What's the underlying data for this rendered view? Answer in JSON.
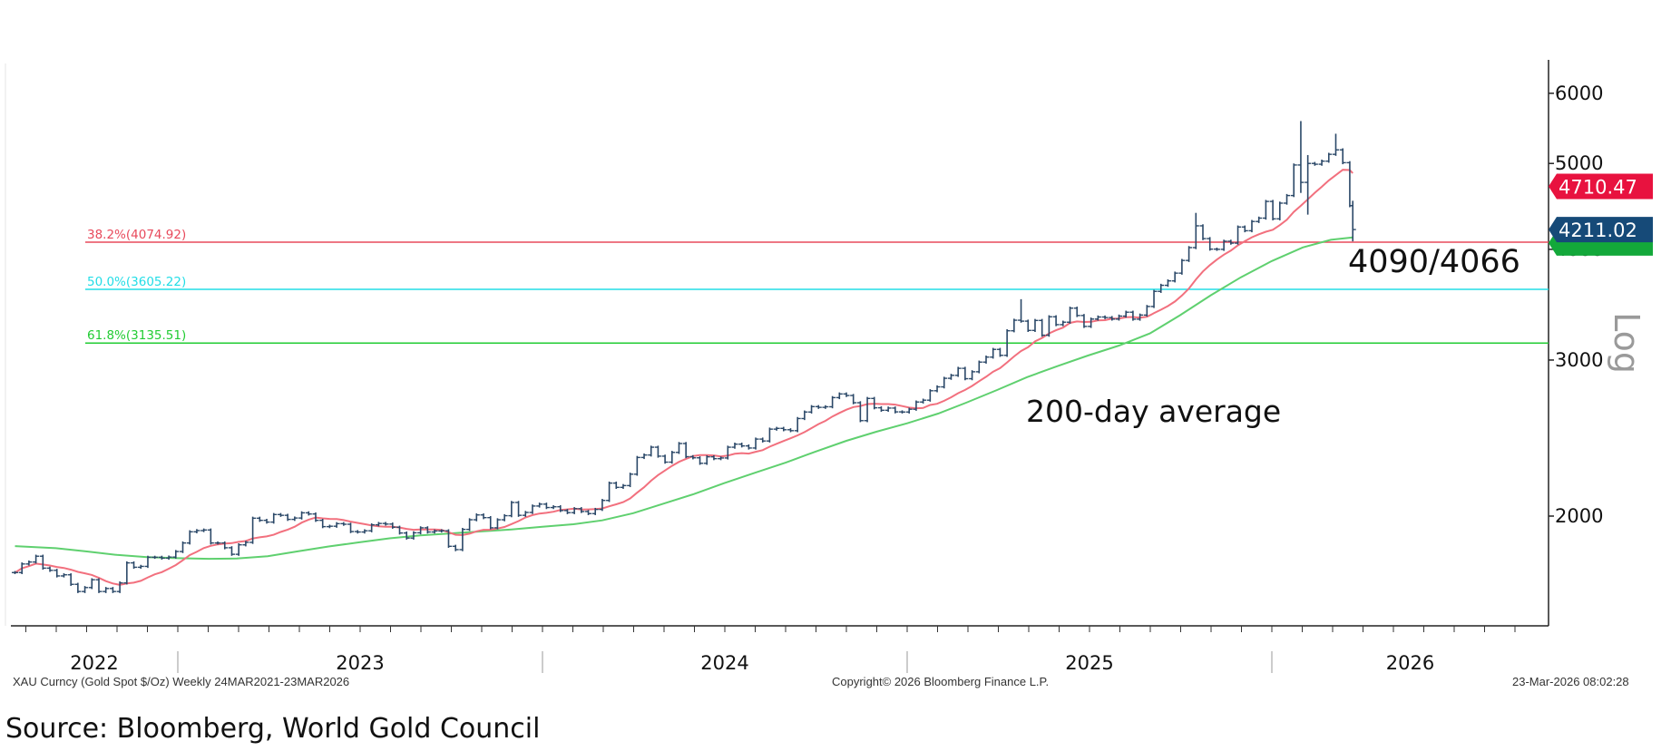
{
  "chart_data": {
    "type": "ohlc-bar",
    "frequency": "Weekly",
    "yscale": "log",
    "ylim": [
      1550,
      6400
    ],
    "yticks": [
      2000,
      3000,
      4000,
      5000,
      6000
    ],
    "axis_scale_label": "Log",
    "xticks": [
      "2022",
      "2023",
      "2024",
      "2025",
      "2026"
    ],
    "grid": false,
    "colors": {
      "bars": "#2b4868",
      "ma_red": "#f2707e",
      "ma_green": "#5fd06f",
      "fib_382": "#e84a5c",
      "fib_500": "#22dde6",
      "fib_618": "#22cc33",
      "tag_red": "#e8123f",
      "tag_blue": "#164a78",
      "tag_green": "#13a83a"
    },
    "closes": [
      [
        "2022-07-22",
        1727
      ],
      [
        "2022-07-29",
        1766
      ],
      [
        "2022-08-05",
        1775
      ],
      [
        "2022-08-12",
        1802
      ],
      [
        "2022-08-19",
        1747
      ],
      [
        "2022-08-26",
        1737
      ],
      [
        "2022-09-02",
        1712
      ],
      [
        "2022-09-09",
        1717
      ],
      [
        "2022-09-16",
        1675
      ],
      [
        "2022-09-23",
        1644
      ],
      [
        "2022-09-30",
        1661
      ],
      [
        "2022-10-07",
        1695
      ],
      [
        "2022-10-14",
        1644
      ],
      [
        "2022-10-21",
        1657
      ],
      [
        "2022-10-28",
        1644
      ],
      [
        "2022-11-04",
        1681
      ],
      [
        "2022-11-11",
        1771
      ],
      [
        "2022-11-18",
        1751
      ],
      [
        "2022-11-25",
        1755
      ],
      [
        "2022-12-02",
        1797
      ],
      [
        "2022-12-09",
        1797
      ],
      [
        "2022-12-16",
        1793
      ],
      [
        "2022-12-23",
        1798
      ],
      [
        "2022-12-30",
        1824
      ],
      [
        "2023-01-06",
        1865
      ],
      [
        "2023-01-13",
        1920
      ],
      [
        "2023-01-20",
        1926
      ],
      [
        "2023-01-27",
        1929
      ],
      [
        "2023-02-03",
        1865
      ],
      [
        "2023-02-10",
        1865
      ],
      [
        "2023-02-17",
        1842
      ],
      [
        "2023-02-24",
        1811
      ],
      [
        "2023-03-03",
        1856
      ],
      [
        "2023-03-10",
        1868
      ],
      [
        "2023-03-17",
        1989
      ],
      [
        "2023-03-24",
        1978
      ],
      [
        "2023-03-31",
        1969
      ],
      [
        "2023-04-07",
        2008
      ],
      [
        "2023-04-14",
        2004
      ],
      [
        "2023-04-21",
        1983
      ],
      [
        "2023-04-28",
        1990
      ],
      [
        "2023-05-05",
        2017
      ],
      [
        "2023-05-12",
        2011
      ],
      [
        "2023-05-19",
        1978
      ],
      [
        "2023-05-26",
        1946
      ],
      [
        "2023-06-02",
        1948
      ],
      [
        "2023-06-09",
        1961
      ],
      [
        "2023-06-16",
        1958
      ],
      [
        "2023-06-23",
        1921
      ],
      [
        "2023-06-30",
        1919
      ],
      [
        "2023-07-07",
        1925
      ],
      [
        "2023-07-14",
        1955
      ],
      [
        "2023-07-21",
        1962
      ],
      [
        "2023-07-28",
        1959
      ],
      [
        "2023-08-04",
        1943
      ],
      [
        "2023-08-11",
        1914
      ],
      [
        "2023-08-18",
        1889
      ],
      [
        "2023-08-25",
        1915
      ],
      [
        "2023-09-01",
        1940
      ],
      [
        "2023-09-08",
        1919
      ],
      [
        "2023-09-15",
        1924
      ],
      [
        "2023-09-22",
        1925
      ],
      [
        "2023-09-29",
        1849
      ],
      [
        "2023-10-06",
        1833
      ],
      [
        "2023-10-13",
        1932
      ],
      [
        "2023-10-20",
        1981
      ],
      [
        "2023-10-27",
        2006
      ],
      [
        "2023-11-03",
        1992
      ],
      [
        "2023-11-10",
        1940
      ],
      [
        "2023-11-17",
        1981
      ],
      [
        "2023-11-24",
        2002
      ],
      [
        "2023-12-01",
        2072
      ],
      [
        "2023-12-08",
        2004
      ],
      [
        "2023-12-15",
        2019
      ],
      [
        "2023-12-22",
        2053
      ],
      [
        "2023-12-29",
        2063
      ],
      [
        "2024-01-05",
        2045
      ],
      [
        "2024-01-12",
        2049
      ],
      [
        "2024-01-19",
        2029
      ],
      [
        "2024-01-26",
        2018
      ],
      [
        "2024-02-02",
        2039
      ],
      [
        "2024-02-09",
        2024
      ],
      [
        "2024-02-16",
        2013
      ],
      [
        "2024-02-23",
        2035
      ],
      [
        "2024-03-01",
        2083
      ],
      [
        "2024-03-08",
        2179
      ],
      [
        "2024-03-15",
        2155
      ],
      [
        "2024-03-22",
        2165
      ],
      [
        "2024-03-29",
        2230
      ],
      [
        "2024-04-05",
        2329
      ],
      [
        "2024-04-12",
        2344
      ],
      [
        "2024-04-19",
        2392
      ],
      [
        "2024-04-26",
        2337
      ],
      [
        "2024-05-03",
        2301
      ],
      [
        "2024-05-10",
        2360
      ],
      [
        "2024-05-17",
        2415
      ],
      [
        "2024-05-24",
        2334
      ],
      [
        "2024-05-31",
        2327
      ],
      [
        "2024-06-07",
        2294
      ],
      [
        "2024-06-14",
        2333
      ],
      [
        "2024-06-21",
        2322
      ],
      [
        "2024-06-28",
        2326
      ],
      [
        "2024-07-05",
        2392
      ],
      [
        "2024-07-12",
        2411
      ],
      [
        "2024-07-19",
        2400
      ],
      [
        "2024-07-26",
        2387
      ],
      [
        "2024-08-02",
        2443
      ],
      [
        "2024-08-09",
        2431
      ],
      [
        "2024-08-16",
        2507
      ],
      [
        "2024-08-23",
        2512
      ],
      [
        "2024-08-30",
        2503
      ],
      [
        "2024-09-06",
        2497
      ],
      [
        "2024-09-13",
        2577
      ],
      [
        "2024-09-20",
        2621
      ],
      [
        "2024-09-27",
        2658
      ],
      [
        "2024-10-04",
        2653
      ],
      [
        "2024-10-11",
        2657
      ],
      [
        "2024-10-18",
        2721
      ],
      [
        "2024-10-25",
        2747
      ],
      [
        "2024-11-01",
        2736
      ],
      [
        "2024-11-08",
        2685
      ],
      [
        "2024-11-15",
        2563
      ],
      [
        "2024-11-22",
        2715
      ],
      [
        "2024-11-29",
        2650
      ],
      [
        "2024-12-06",
        2633
      ],
      [
        "2024-12-13",
        2648
      ],
      [
        "2024-12-20",
        2622
      ],
      [
        "2024-12-27",
        2621
      ],
      [
        "2025-01-03",
        2640
      ],
      [
        "2025-01-10",
        2690
      ],
      [
        "2025-01-17",
        2703
      ],
      [
        "2025-01-24",
        2770
      ],
      [
        "2025-01-31",
        2798
      ],
      [
        "2025-02-07",
        2861
      ],
      [
        "2025-02-14",
        2883
      ],
      [
        "2025-02-21",
        2936
      ],
      [
        "2025-02-28",
        2858
      ],
      [
        "2025-03-07",
        2910
      ],
      [
        "2025-03-14",
        2984
      ],
      [
        "2025-03-21",
        3023
      ],
      [
        "2025-03-28",
        3084
      ],
      [
        "2025-04-04",
        3037
      ],
      [
        "2025-04-11",
        3237
      ],
      [
        "2025-04-18",
        3327
      ],
      [
        "2025-04-25",
        3319
      ],
      [
        "2025-05-02",
        3240
      ],
      [
        "2025-05-09",
        3325
      ],
      [
        "2025-05-16",
        3200
      ],
      [
        "2025-05-23",
        3357
      ],
      [
        "2025-05-30",
        3289
      ],
      [
        "2025-06-06",
        3310
      ],
      [
        "2025-06-13",
        3433
      ],
      [
        "2025-06-20",
        3368
      ],
      [
        "2025-06-27",
        3274
      ],
      [
        "2025-07-04",
        3337
      ],
      [
        "2025-07-11",
        3355
      ],
      [
        "2025-07-18",
        3350
      ],
      [
        "2025-07-25",
        3337
      ],
      [
        "2025-08-01",
        3363
      ],
      [
        "2025-08-08",
        3397
      ],
      [
        "2025-08-15",
        3336
      ],
      [
        "2025-08-22",
        3372
      ],
      [
        "2025-08-29",
        3448
      ],
      [
        "2025-09-05",
        3586
      ],
      [
        "2025-09-12",
        3643
      ],
      [
        "2025-09-19",
        3685
      ],
      [
        "2025-09-26",
        3760
      ],
      [
        "2025-10-03",
        3886
      ],
      [
        "2025-10-10",
        4018
      ],
      [
        "2025-10-17",
        4252
      ],
      [
        "2025-10-24",
        4113
      ],
      [
        "2025-10-31",
        4002
      ],
      [
        "2025-11-07",
        4000
      ],
      [
        "2025-11-14",
        4085
      ],
      [
        "2025-11-21",
        4065
      ],
      [
        "2025-11-28",
        4239
      ],
      [
        "2025-12-05",
        4198
      ],
      [
        "2025-12-12",
        4300
      ],
      [
        "2025-12-19",
        4338
      ],
      [
        "2025-12-26",
        4530
      ],
      [
        "2026-01-02",
        4330
      ],
      [
        "2026-01-09",
        4510
      ],
      [
        "2026-01-16",
        4600
      ],
      [
        "2026-01-23",
        4980
      ],
      [
        "2026-01-30",
        4760
      ],
      [
        "2026-02-06",
        5000
      ],
      [
        "2026-02-13",
        4990
      ],
      [
        "2026-02-20",
        5030
      ],
      [
        "2026-02-27",
        5120
      ],
      [
        "2026-03-06",
        5180
      ],
      [
        "2026-03-13",
        5010
      ],
      [
        "2026-03-20",
        4480
      ],
      [
        "2026-03-23",
        4211
      ]
    ],
    "extremes": {
      "2025-04-25": {
        "high": 3500
      },
      "2025-10-17": {
        "high": 4380
      },
      "2026-01-30": {
        "high": 5560,
        "low": 4650
      },
      "2026-02-06": {
        "high": 5090,
        "low": 4395
      },
      "2026-03-06": {
        "high": 5380
      },
      "2026-03-20": {
        "high": 4980
      },
      "2026-03-23": {
        "high": 4520,
        "low": 4100
      }
    },
    "ma_green_label": "200-day average",
    "ma_green": [
      [
        "2022-07-22",
        1850
      ],
      [
        "2022-09-01",
        1840
      ],
      [
        "2022-10-01",
        1825
      ],
      [
        "2022-11-01",
        1808
      ],
      [
        "2022-12-01",
        1798
      ],
      [
        "2023-01-01",
        1793
      ],
      [
        "2023-02-01",
        1790
      ],
      [
        "2023-03-01",
        1791
      ],
      [
        "2023-04-01",
        1802
      ],
      [
        "2023-05-01",
        1825
      ],
      [
        "2023-06-01",
        1848
      ],
      [
        "2023-07-01",
        1868
      ],
      [
        "2023-08-01",
        1888
      ],
      [
        "2023-09-01",
        1902
      ],
      [
        "2023-10-01",
        1912
      ],
      [
        "2023-11-01",
        1922
      ],
      [
        "2023-12-01",
        1932
      ],
      [
        "2024-01-01",
        1945
      ],
      [
        "2024-02-01",
        1958
      ],
      [
        "2024-03-01",
        1978
      ],
      [
        "2024-04-01",
        2015
      ],
      [
        "2024-05-01",
        2065
      ],
      [
        "2024-06-01",
        2118
      ],
      [
        "2024-07-01",
        2178
      ],
      [
        "2024-08-01",
        2238
      ],
      [
        "2024-09-01",
        2298
      ],
      [
        "2024-10-01",
        2365
      ],
      [
        "2024-11-01",
        2432
      ],
      [
        "2024-12-01",
        2490
      ],
      [
        "2025-01-01",
        2545
      ],
      [
        "2025-02-01",
        2610
      ],
      [
        "2025-03-01",
        2685
      ],
      [
        "2025-04-01",
        2775
      ],
      [
        "2025-05-01",
        2870
      ],
      [
        "2025-06-01",
        2955
      ],
      [
        "2025-07-01",
        3035
      ],
      [
        "2025-08-01",
        3115
      ],
      [
        "2025-09-01",
        3215
      ],
      [
        "2025-10-01",
        3370
      ],
      [
        "2025-11-01",
        3550
      ],
      [
        "2025-12-01",
        3720
      ],
      [
        "2026-01-01",
        3880
      ],
      [
        "2026-02-01",
        4020
      ],
      [
        "2026-03-01",
        4100
      ],
      [
        "2026-03-23",
        4125
      ]
    ],
    "fib_levels": [
      {
        "label": "38.2%(4074.92)",
        "value": 4074.92
      },
      {
        "label": "50.0%(3605.22)",
        "value": 3605.22
      },
      {
        "label": "61.8%(3135.51)",
        "value": 3135.51
      }
    ],
    "price_tags": {
      "ma_red": "4710.47",
      "last": "4211.02"
    },
    "annotations": {
      "target": "4090/4066",
      "ma_label": "200-day average"
    }
  },
  "footer": {
    "security": "XAU Curncy (Gold Spot  $/Oz) Weekly 24MAR2021-23MAR2026",
    "copyright": "Copyright© 2026 Bloomberg Finance L.P.",
    "timestamp": "23-Mar-2026 08:02:28"
  },
  "source": "Source: Bloomberg, World Gold Council"
}
